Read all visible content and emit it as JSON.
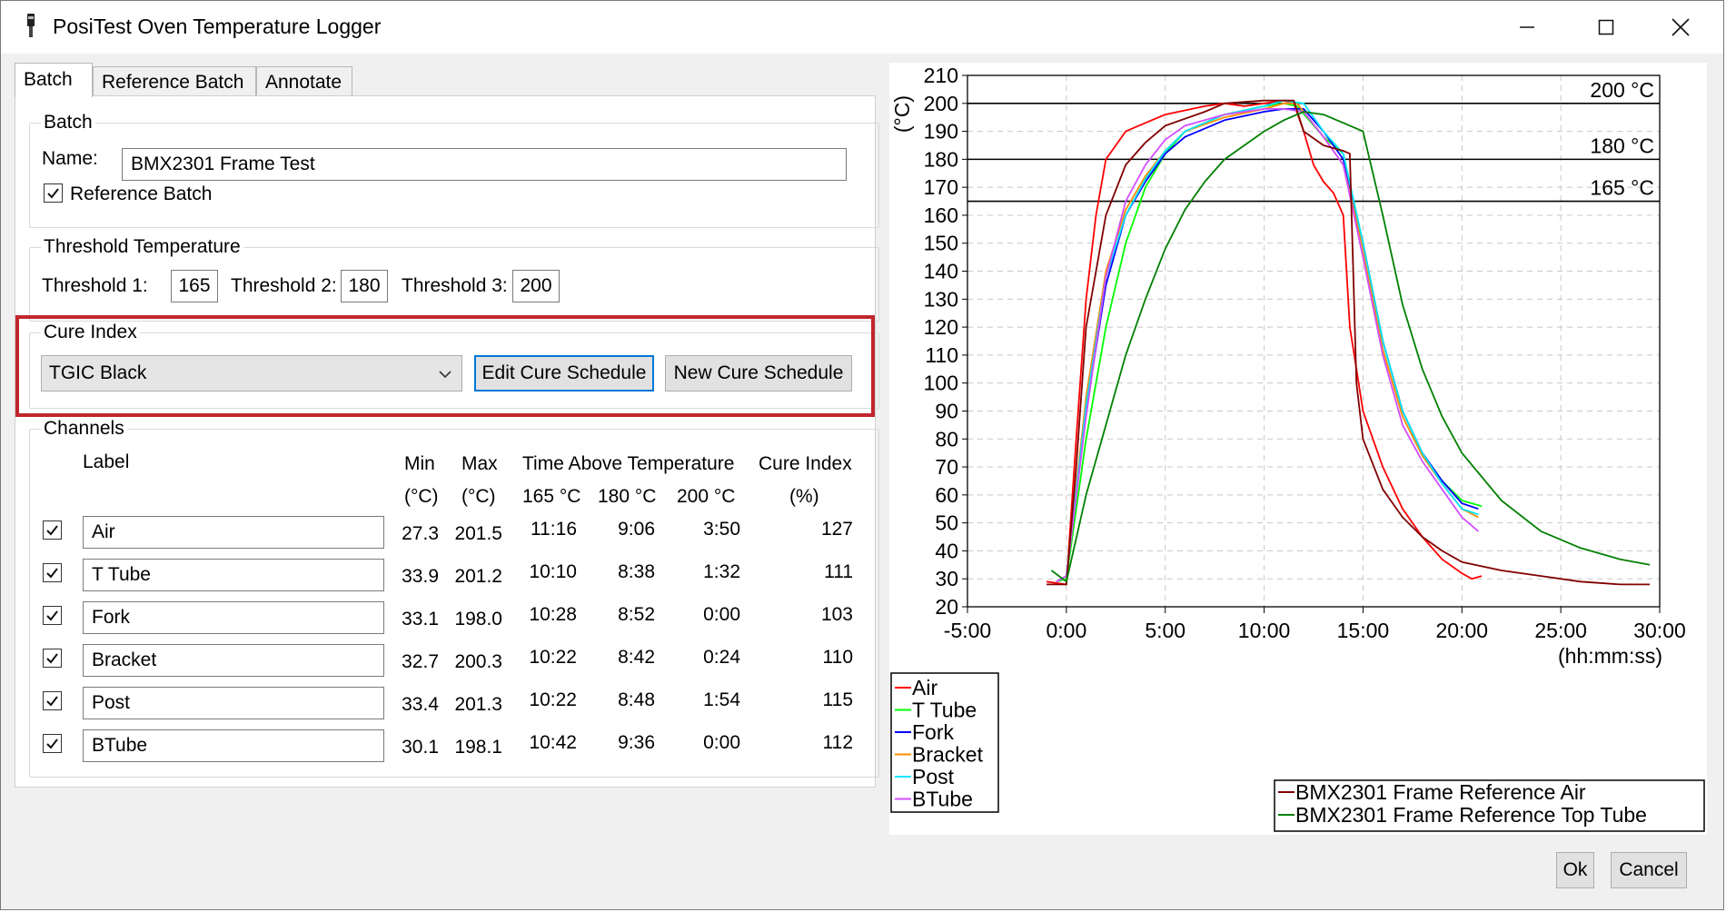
{
  "window": {
    "title": "PosiTest Oven Temperature Logger"
  },
  "tabs": [
    {
      "label": "Batch"
    },
    {
      "label": "Reference Batch"
    },
    {
      "label": "Annotate"
    }
  ],
  "batch": {
    "group_label": "Batch",
    "name_label": "Name:",
    "name_value": "BMX2301 Frame Test",
    "reference_label": "Reference Batch",
    "reference_checked": true
  },
  "threshold": {
    "group_label": "Threshold Temperature",
    "t1_label": "Threshold 1:",
    "t1": "165",
    "t2_label": "Threshold 2:",
    "t2": "180",
    "t3_label": "Threshold 3:",
    "t3": "200"
  },
  "cure": {
    "group_label": "Cure Index",
    "selected": "TGIC Black",
    "edit_label": "Edit Cure Schedule",
    "new_label": "New Cure Schedule"
  },
  "channels": {
    "group_label": "Channels",
    "headers": {
      "label": "Label",
      "min": "Min",
      "max": "Max",
      "tat": "Time Above Temperature",
      "cure": "Cure Index",
      "min_unit": "(°C)",
      "max_unit": "(°C)",
      "t165": "165 °C",
      "t180": "180 °C",
      "t200": "200 °C",
      "cure_unit": "(%)"
    },
    "rows": [
      {
        "label": "Air",
        "min": "27.3",
        "max": "201.5",
        "t165": "11:16",
        "t180": "9:06",
        "t200": "3:50",
        "cure": "127",
        "checked": true
      },
      {
        "label": "T Tube",
        "min": "33.9",
        "max": "201.2",
        "t165": "10:10",
        "t180": "8:38",
        "t200": "1:32",
        "cure": "111",
        "checked": true
      },
      {
        "label": "Fork",
        "min": "33.1",
        "max": "198.0",
        "t165": "10:28",
        "t180": "8:52",
        "t200": "0:00",
        "cure": "103",
        "checked": true
      },
      {
        "label": "Bracket",
        "min": "32.7",
        "max": "200.3",
        "t165": "10:22",
        "t180": "8:42",
        "t200": "0:24",
        "cure": "110",
        "checked": true
      },
      {
        "label": "Post",
        "min": "33.4",
        "max": "201.3",
        "t165": "10:22",
        "t180": "8:48",
        "t200": "1:54",
        "cure": "115",
        "checked": true
      },
      {
        "label": "BTube",
        "min": "30.1",
        "max": "198.1",
        "t165": "10:42",
        "t180": "9:36",
        "t200": "0:00",
        "cure": "112",
        "checked": true
      }
    ]
  },
  "buttons": {
    "ok": "Ok",
    "cancel": "Cancel"
  },
  "chart_data": {
    "type": "line",
    "ylabel": "(°C)",
    "xlabel": "(hh:mm:ss)",
    "ylim": [
      20,
      210
    ],
    "yticks": [
      20,
      30,
      40,
      50,
      60,
      70,
      80,
      90,
      100,
      110,
      120,
      130,
      140,
      150,
      160,
      170,
      180,
      190,
      200,
      210
    ],
    "xlim": [
      -300,
      1800
    ],
    "xticks": [
      -300,
      0,
      300,
      600,
      900,
      1200,
      1500,
      1800
    ],
    "xtick_labels": [
      "-5:00",
      "0:00",
      "5:00",
      "10:00",
      "15:00",
      "20:00",
      "25:00",
      "30:00"
    ],
    "grid": true,
    "thresholds": [
      {
        "value": 200,
        "label": "200 °C"
      },
      {
        "value": 180,
        "label": "180 °C"
      },
      {
        "value": 165,
        "label": "165 °C"
      }
    ],
    "series": [
      {
        "name": "Air",
        "color": "#ff0000",
        "points": [
          [
            -60,
            29
          ],
          [
            0,
            28
          ],
          [
            30,
            80
          ],
          [
            60,
            130
          ],
          [
            90,
            160
          ],
          [
            120,
            180
          ],
          [
            180,
            190
          ],
          [
            240,
            193
          ],
          [
            300,
            196
          ],
          [
            420,
            199
          ],
          [
            480,
            200
          ],
          [
            540,
            199
          ],
          [
            600,
            200
          ],
          [
            660,
            201
          ],
          [
            690,
            200
          ],
          [
            720,
            190
          ],
          [
            750,
            178
          ],
          [
            780,
            172
          ],
          [
            810,
            168
          ],
          [
            840,
            160
          ],
          [
            860,
            120
          ],
          [
            880,
            105
          ],
          [
            900,
            90
          ],
          [
            960,
            70
          ],
          [
            1020,
            55
          ],
          [
            1080,
            45
          ],
          [
            1140,
            37
          ],
          [
            1200,
            32
          ],
          [
            1230,
            30
          ],
          [
            1260,
            31
          ]
        ]
      },
      {
        "name": "T Tube",
        "color": "#00ff00",
        "points": [
          [
            -30,
            29
          ],
          [
            0,
            30
          ],
          [
            60,
            80
          ],
          [
            120,
            120
          ],
          [
            180,
            150
          ],
          [
            240,
            170
          ],
          [
            300,
            182
          ],
          [
            360,
            190
          ],
          [
            480,
            196
          ],
          [
            600,
            199
          ],
          [
            660,
            200
          ],
          [
            700,
            199
          ],
          [
            780,
            188
          ],
          [
            840,
            182
          ],
          [
            900,
            150
          ],
          [
            960,
            115
          ],
          [
            1020,
            90
          ],
          [
            1080,
            75
          ],
          [
            1140,
            65
          ],
          [
            1200,
            58
          ],
          [
            1260,
            56
          ]
        ]
      },
      {
        "name": "Fork",
        "color": "#0000ff",
        "points": [
          [
            -30,
            29
          ],
          [
            0,
            31
          ],
          [
            60,
            90
          ],
          [
            120,
            135
          ],
          [
            180,
            160
          ],
          [
            240,
            172
          ],
          [
            300,
            182
          ],
          [
            360,
            188
          ],
          [
            480,
            194
          ],
          [
            600,
            197
          ],
          [
            660,
            198
          ],
          [
            720,
            198
          ],
          [
            780,
            190
          ],
          [
            840,
            180
          ],
          [
            900,
            150
          ],
          [
            960,
            115
          ],
          [
            1020,
            90
          ],
          [
            1080,
            75
          ],
          [
            1140,
            65
          ],
          [
            1200,
            57
          ],
          [
            1250,
            55
          ]
        ]
      },
      {
        "name": "Bracket",
        "color": "#ff8c00",
        "points": [
          [
            -30,
            29
          ],
          [
            0,
            31
          ],
          [
            60,
            95
          ],
          [
            120,
            140
          ],
          [
            180,
            162
          ],
          [
            240,
            174
          ],
          [
            300,
            183
          ],
          [
            360,
            190
          ],
          [
            480,
            195
          ],
          [
            600,
            198
          ],
          [
            660,
            200
          ],
          [
            700,
            200
          ],
          [
            780,
            188
          ],
          [
            840,
            178
          ],
          [
            900,
            148
          ],
          [
            960,
            112
          ],
          [
            1020,
            88
          ],
          [
            1080,
            74
          ],
          [
            1140,
            64
          ],
          [
            1200,
            55
          ],
          [
            1250,
            52
          ]
        ]
      },
      {
        "name": "Post",
        "color": "#00e5ff",
        "points": [
          [
            -30,
            29
          ],
          [
            0,
            31
          ],
          [
            60,
            92
          ],
          [
            120,
            138
          ],
          [
            180,
            160
          ],
          [
            240,
            173
          ],
          [
            300,
            183
          ],
          [
            360,
            190
          ],
          [
            480,
            196
          ],
          [
            600,
            199
          ],
          [
            660,
            201
          ],
          [
            720,
            200
          ],
          [
            780,
            190
          ],
          [
            840,
            182
          ],
          [
            900,
            150
          ],
          [
            960,
            115
          ],
          [
            1020,
            90
          ],
          [
            1080,
            75
          ],
          [
            1140,
            64
          ],
          [
            1200,
            55
          ],
          [
            1250,
            53
          ]
        ]
      },
      {
        "name": "BTube",
        "color": "#d24dff",
        "points": [
          [
            -30,
            29
          ],
          [
            0,
            31
          ],
          [
            60,
            88
          ],
          [
            120,
            138
          ],
          [
            180,
            165
          ],
          [
            240,
            178
          ],
          [
            300,
            187
          ],
          [
            360,
            192
          ],
          [
            480,
            196
          ],
          [
            600,
            198
          ],
          [
            660,
            198
          ],
          [
            720,
            197
          ],
          [
            780,
            188
          ],
          [
            840,
            178
          ],
          [
            900,
            145
          ],
          [
            960,
            110
          ],
          [
            1020,
            85
          ],
          [
            1080,
            72
          ],
          [
            1140,
            62
          ],
          [
            1200,
            52
          ],
          [
            1250,
            47
          ]
        ]
      },
      {
        "name": "BMX2301 Frame Reference Air",
        "color": "#800000",
        "points": [
          [
            -60,
            28
          ],
          [
            0,
            28
          ],
          [
            30,
            70
          ],
          [
            60,
            120
          ],
          [
            120,
            160
          ],
          [
            180,
            178
          ],
          [
            240,
            186
          ],
          [
            300,
            192
          ],
          [
            420,
            197
          ],
          [
            480,
            200
          ],
          [
            600,
            201
          ],
          [
            660,
            201
          ],
          [
            690,
            201
          ],
          [
            720,
            190
          ],
          [
            780,
            185
          ],
          [
            840,
            183
          ],
          [
            860,
            182
          ],
          [
            880,
            100
          ],
          [
            900,
            80
          ],
          [
            960,
            62
          ],
          [
            1020,
            52
          ],
          [
            1080,
            45
          ],
          [
            1140,
            40
          ],
          [
            1200,
            36
          ],
          [
            1320,
            33
          ],
          [
            1440,
            31
          ],
          [
            1560,
            29
          ],
          [
            1680,
            28
          ],
          [
            1770,
            28
          ]
        ]
      },
      {
        "name": "BMX2301 Frame Reference Top Tube",
        "color": "#008000",
        "points": [
          [
            -45,
            33
          ],
          [
            0,
            29
          ],
          [
            60,
            60
          ],
          [
            120,
            85
          ],
          [
            180,
            110
          ],
          [
            240,
            130
          ],
          [
            300,
            148
          ],
          [
            360,
            162
          ],
          [
            420,
            172
          ],
          [
            480,
            180
          ],
          [
            600,
            190
          ],
          [
            660,
            194
          ],
          [
            720,
            197
          ],
          [
            780,
            196
          ],
          [
            840,
            193
          ],
          [
            900,
            190
          ],
          [
            960,
            160
          ],
          [
            1020,
            128
          ],
          [
            1080,
            105
          ],
          [
            1140,
            88
          ],
          [
            1200,
            75
          ],
          [
            1320,
            58
          ],
          [
            1440,
            47
          ],
          [
            1560,
            41
          ],
          [
            1680,
            37
          ],
          [
            1770,
            35
          ]
        ]
      }
    ]
  }
}
